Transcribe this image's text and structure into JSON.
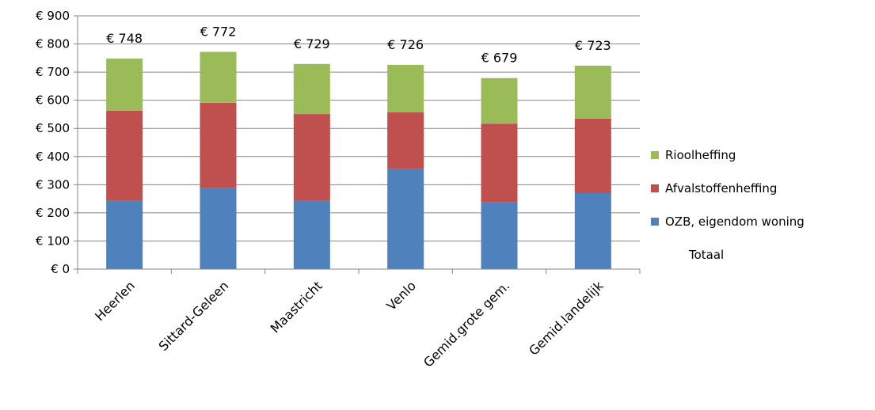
{
  "chart_data": {
    "type": "bar",
    "stacked": true,
    "title": "",
    "xlabel": "",
    "ylabel": "",
    "ylim": [
      0,
      900
    ],
    "y_ticks": [
      0,
      100,
      200,
      300,
      400,
      500,
      600,
      700,
      800,
      900
    ],
    "y_tick_labels": [
      "€ 0",
      "€ 100",
      "€ 200",
      "€ 300",
      "€ 400",
      "€ 500",
      "€ 600",
      "€ 700",
      "€ 800",
      "€ 900"
    ],
    "grid": true,
    "legend_position": "right",
    "categories": [
      "Heerlen",
      "Sittard-Geleen",
      "Maastricht",
      "Venlo",
      "Gemid.grote gem.",
      "Gemid.landelijk"
    ],
    "series": [
      {
        "name": "OZB, eigendom woning",
        "color": "#4f81bd",
        "values": [
          243,
          288,
          243,
          357,
          237,
          270
        ]
      },
      {
        "name": "Afvalstoffenheffing",
        "color": "#c0504d",
        "values": [
          320,
          303,
          308,
          200,
          280,
          265
        ]
      },
      {
        "name": "Rioolheffing",
        "color": "#9bbb59",
        "values": [
          185,
          181,
          178,
          169,
          162,
          188
        ]
      }
    ],
    "totals_series_name": "Totaal",
    "totals": [
      748,
      772,
      729,
      726,
      679,
      723
    ],
    "total_labels": [
      "€ 748",
      "€ 772",
      "€ 729",
      "€ 726",
      "€ 679",
      "€ 723"
    ]
  }
}
